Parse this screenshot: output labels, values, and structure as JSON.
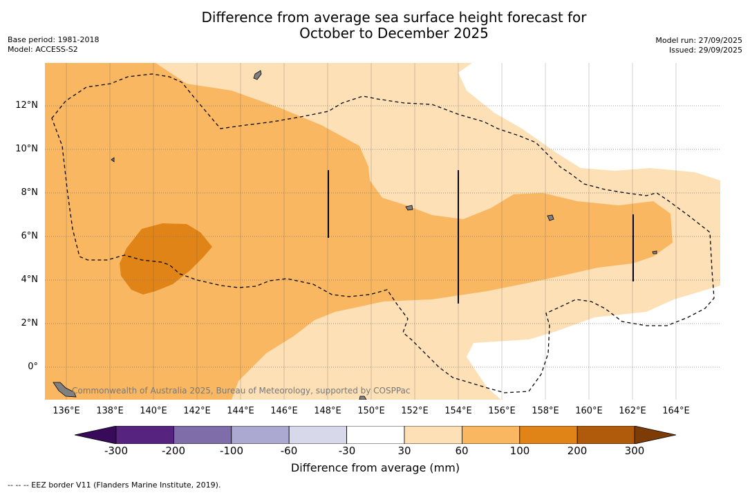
{
  "title": {
    "line1": "Difference from average sea surface height forecast for",
    "line2": "October to December 2025"
  },
  "meta_left": {
    "base_period": "Base period: 1981-2018",
    "model": "Model: ACCESS-S2"
  },
  "meta_right": {
    "model_run": "Model run: 27/09/2025",
    "issued": "Issued: 29/09/2025"
  },
  "map": {
    "lat_labels": [
      "12°N",
      "10°N",
      "8°N",
      "6°N",
      "4°N",
      "2°N",
      "0°"
    ],
    "lon_labels": [
      "136°E",
      "138°E",
      "140°E",
      "142°E",
      "144°E",
      "146°E",
      "148°E",
      "150°E",
      "152°E",
      "154°E",
      "156°E",
      "158°E",
      "160°E",
      "162°E",
      "164°E"
    ],
    "credit": "Commonwealth of Australia 2025, Bureau of Meteorology, supported by COSPPac",
    "colors": {
      "c30_60": "#fde0b6",
      "c60_100": "#f9b762",
      "c100_200": "#e08417",
      "land": "#808080"
    }
  },
  "colorbar": {
    "labels": [
      "-300",
      "-200",
      "-100",
      "-60",
      "-30",
      "30",
      "60",
      "100",
      "200",
      "300"
    ],
    "colors": [
      "#56247e",
      "#7f6daa",
      "#aba8d2",
      "#d7d8ea",
      "#ffffff",
      "#fde0b6",
      "#f9b762",
      "#e08417",
      "#b05b0b"
    ],
    "under_color": "#380a5a",
    "over_color": "#7d3c05",
    "title": "Difference from average (mm)"
  },
  "footnote": "--  --  -- EEZ border V11 (Flanders Marine Institute, 2019)."
}
